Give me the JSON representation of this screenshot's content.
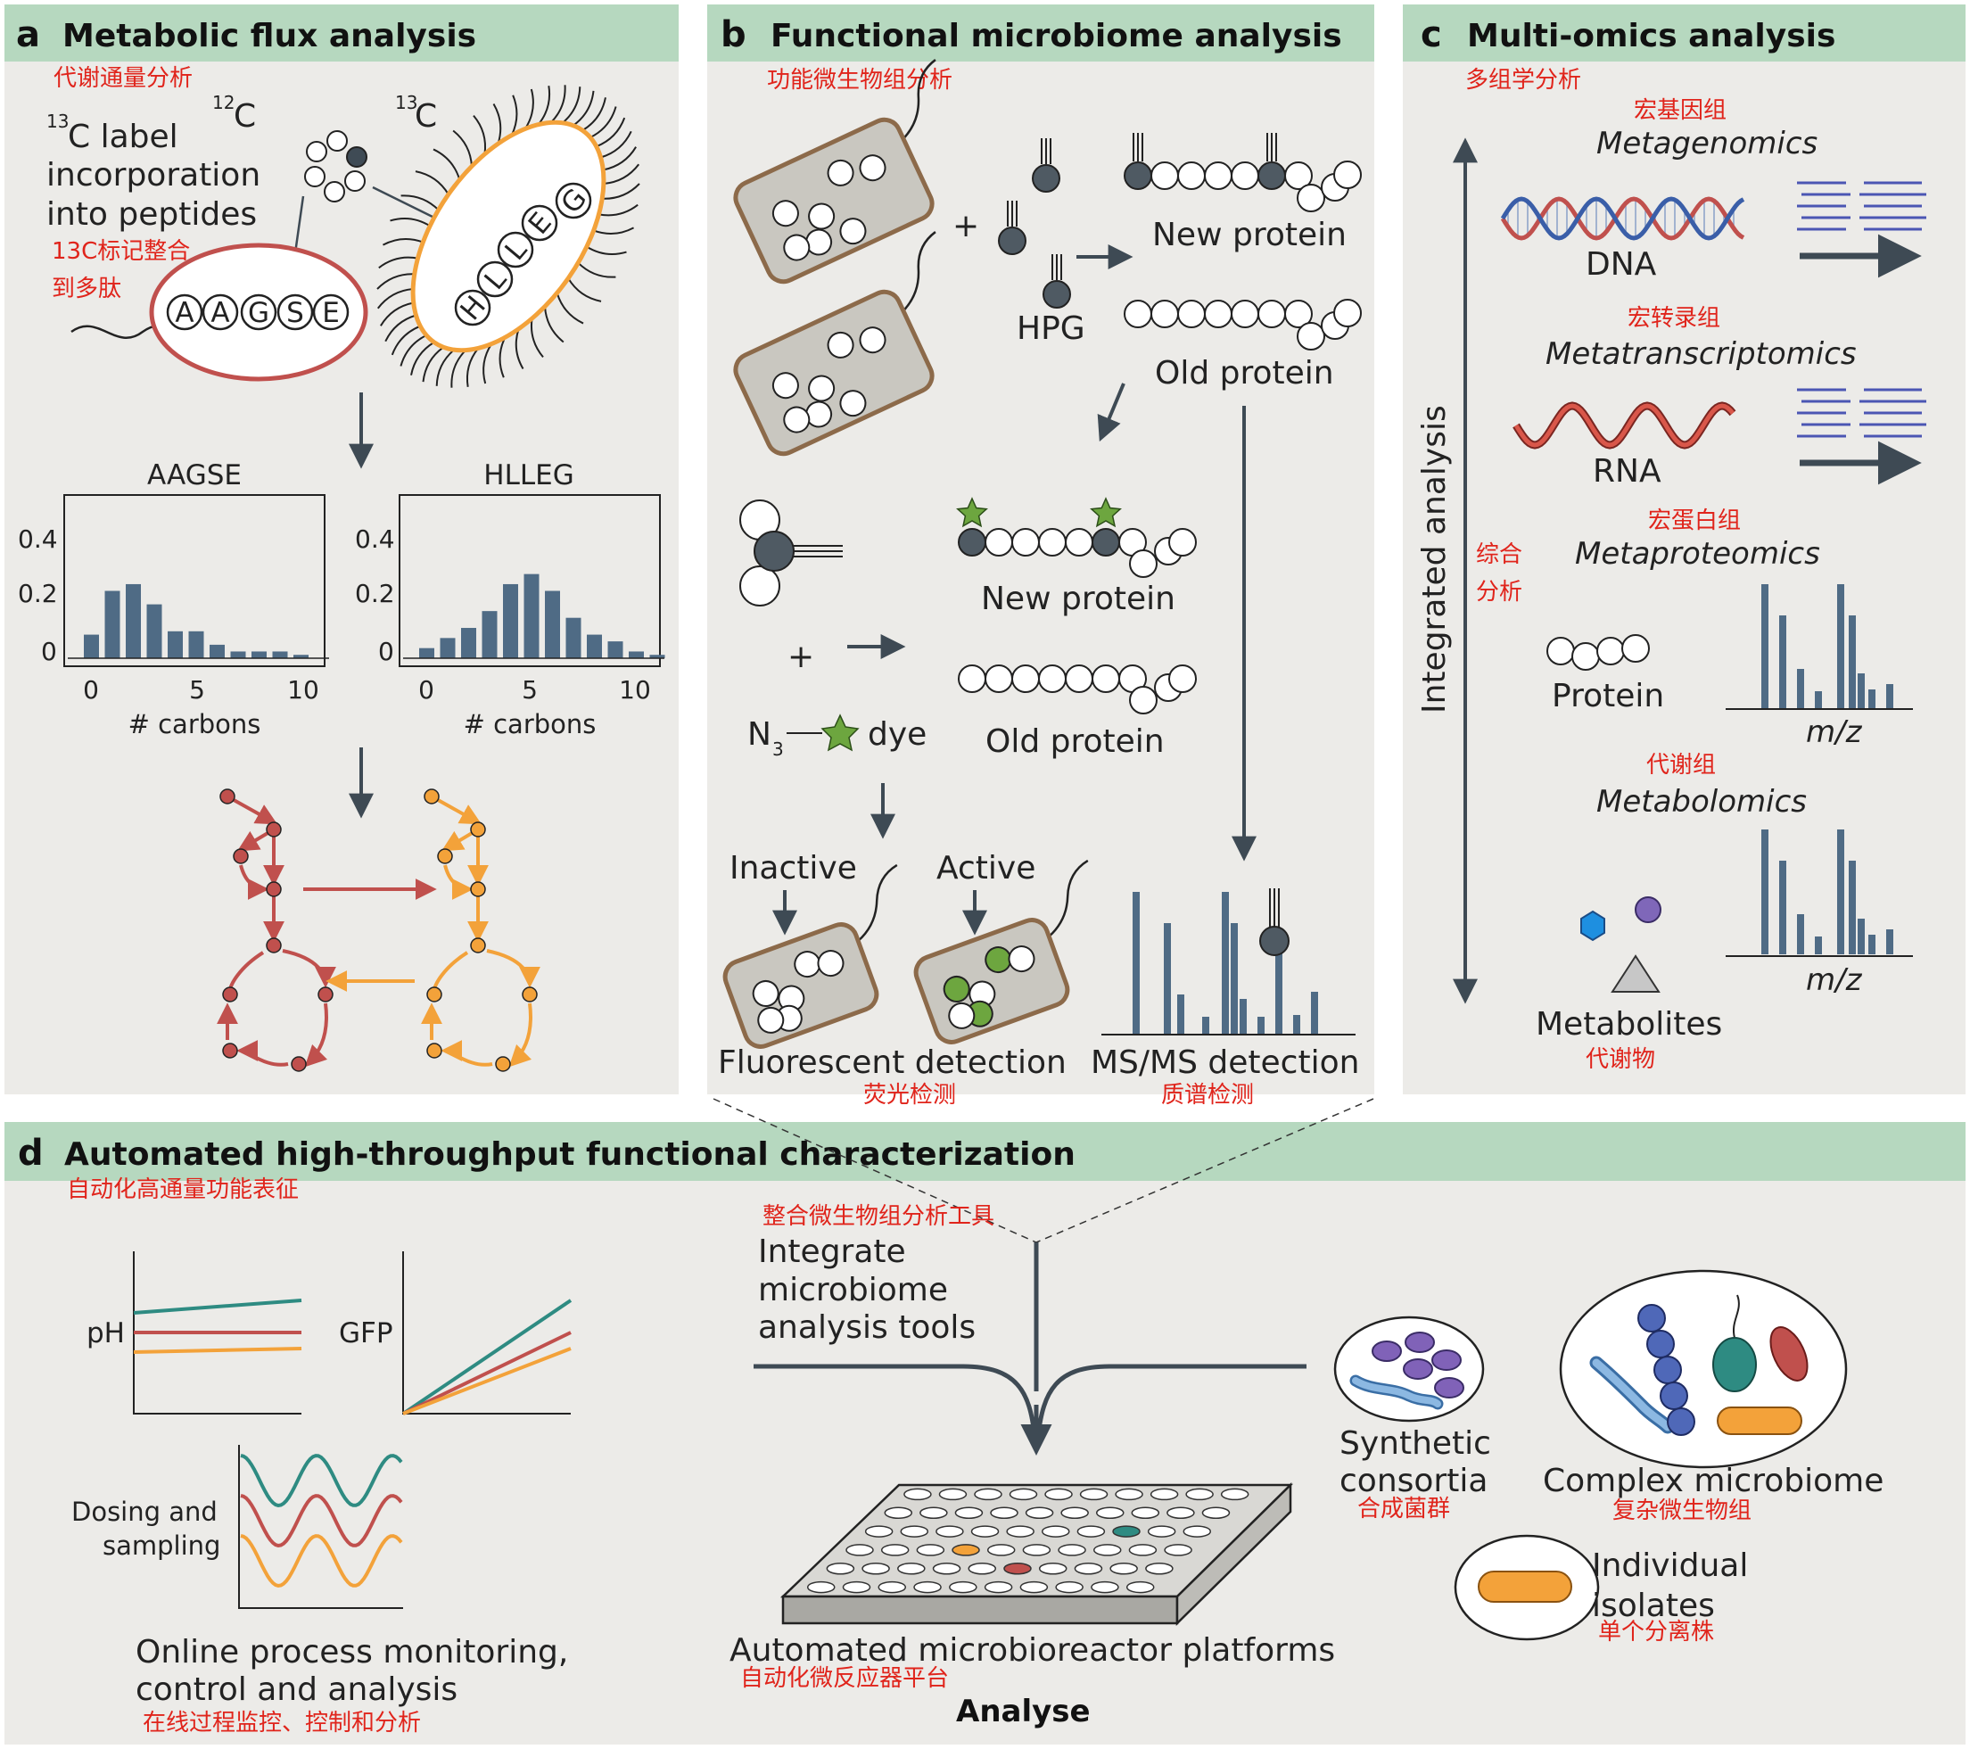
{
  "panels": {
    "a": {
      "letter": "a",
      "title": "Metabolic flux analysis",
      "title_cn": "代谢通量分析",
      "label_13c": "C label",
      "label_13c_sup": "13",
      "label_line2": "incorporation",
      "label_line3": "into peptides",
      "label_cn_line1": "13C标记整合",
      "label_cn_line2": "到多肽",
      "iso_12": "12",
      "iso_13": "13",
      "iso_c": "C",
      "peptide_1": [
        "A",
        "A",
        "G",
        "S",
        "E"
      ],
      "peptide_2": [
        "H",
        "L",
        "L",
        "E",
        "G"
      ],
      "hist_1_title": "AAGSE",
      "hist_2_title": "HLLEG",
      "hist_xlabel": "# carbons",
      "hist_yticks": [
        "0.4",
        "0.2",
        "0"
      ],
      "hist_xticks": [
        "0",
        "5",
        "10"
      ]
    },
    "b": {
      "letter": "b",
      "title": "Functional microbiome analysis",
      "title_cn": "功能微生物组分析",
      "plus": "+",
      "hpg": "HPG",
      "new_protein": "New protein",
      "old_protein": "Old protein",
      "n3": "N",
      "n3_sub": "3",
      "dye": "dye",
      "inactive": "Inactive",
      "active": "Active",
      "fluor": "Fluorescent detection",
      "fluor_cn": "荧光检测",
      "msms": "MS/MS detection",
      "msms_cn": "质谱检测"
    },
    "c": {
      "letter": "c",
      "title": "Multi-omics analysis",
      "title_cn": "多组学分析",
      "axis_label": "Integrated analysis",
      "axis_cn_1": "综合",
      "axis_cn_2": "分析",
      "metagenomics_cn": "宏基因组",
      "metagenomics": "Metagenomics",
      "dna": "DNA",
      "metatranscriptomics_cn": "宏转录组",
      "metatranscriptomics": "Metatranscriptomics",
      "rna": "RNA",
      "metaproteomics_cn": "宏蛋白组",
      "metaproteomics": "Metaproteomics",
      "protein": "Protein",
      "mz": "m/z",
      "metabolomics_cn": "代谢组",
      "metabolomics": "Metabolomics",
      "metabolites": "Metabolites",
      "metabolites_cn": "代谢物"
    },
    "d": {
      "letter": "d",
      "title": "Automated high-throughput functional characterization",
      "title_cn": "自动化高通量功能表征",
      "integrate_cn": "整合微生物组分析工具",
      "integrate_1": "Integrate",
      "integrate_2": "microbiome",
      "integrate_3": "analysis tools",
      "ph": "pH",
      "gfp": "GFP",
      "dosing_1": "Dosing and",
      "dosing_2": "sampling",
      "online_1": "Online process monitoring,",
      "online_2": "control and analysis",
      "online_cn": "在线过程监控、控制和分析",
      "platform": "Automated microbioreactor platforms",
      "platform_cn": "自动化微反应器平台",
      "analyse": "Analyse",
      "synthetic_1": "Synthetic",
      "synthetic_2": "consortia",
      "synthetic_cn": "合成菌群",
      "complex": "Complex microbiome",
      "complex_cn": "复杂微生物组",
      "isolates_1": "Individual",
      "isolates_2": "isolates",
      "isolates_cn": "单个分离株"
    }
  },
  "colors": {
    "header": "#b6d8bf",
    "panel": "#ecebe8",
    "bar": "#4f6b85",
    "red": "#c0504d",
    "orange": "#f3a23a",
    "teal": "#2e8b82",
    "annotation": "#e0241b"
  },
  "histograms": {
    "aagse": [
      0.07,
      0.2,
      0.22,
      0.16,
      0.08,
      0.08,
      0.04,
      0.02,
      0.02,
      0.02,
      0.01
    ],
    "hlleg": [
      0.03,
      0.06,
      0.09,
      0.14,
      0.22,
      0.25,
      0.2,
      0.12,
      0.07,
      0.05,
      0.02,
      0.01
    ]
  }
}
